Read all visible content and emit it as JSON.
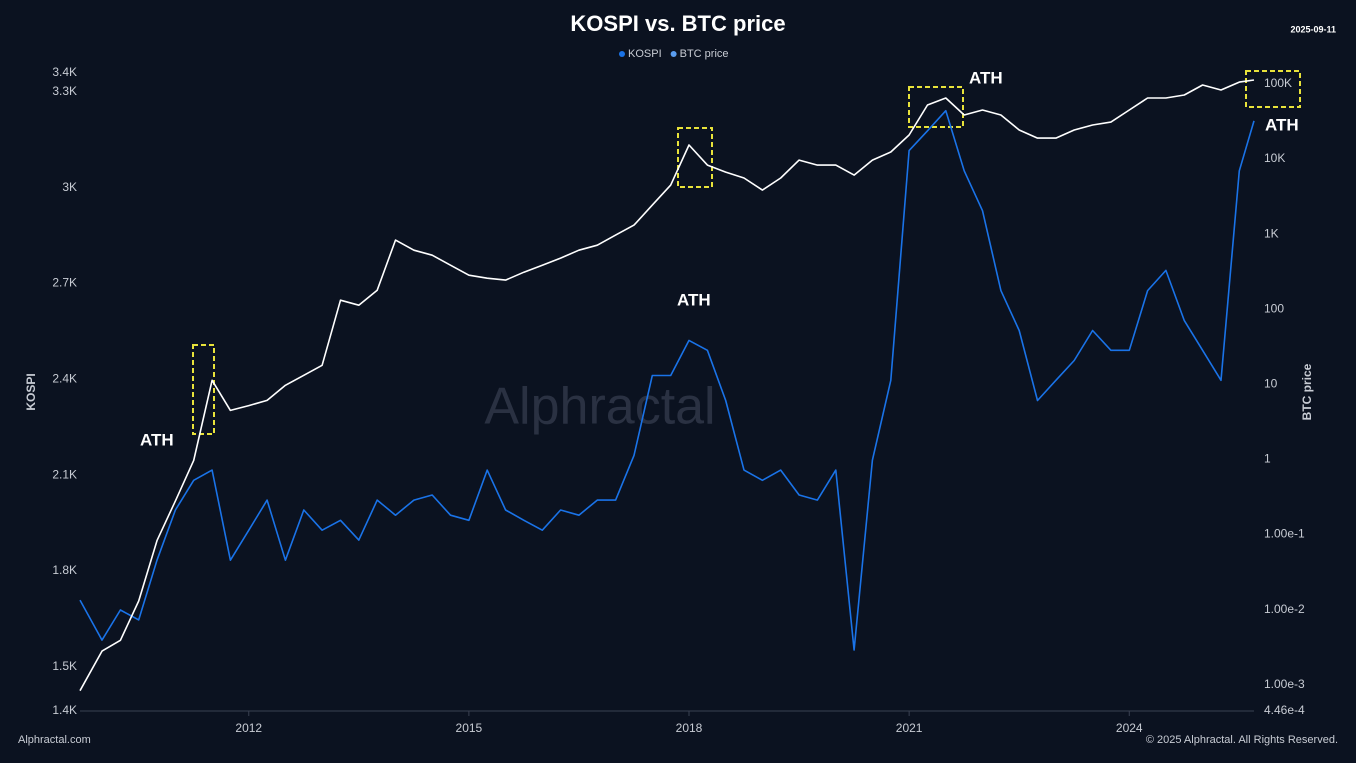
{
  "chart_data": {
    "type": "line",
    "title": "KOSPI vs. BTC price",
    "date": "2025-09-11",
    "x_label": null,
    "y_label": "KOSPI",
    "y2_label": "BTC price",
    "y2_log": true,
    "grid": false,
    "legend": "top",
    "x": [
      2009.7,
      2010,
      2010.25,
      2010.5,
      2010.75,
      2011,
      2011.25,
      2011.5,
      2011.75,
      2012,
      2012.25,
      2012.5,
      2012.75,
      2013,
      2013.25,
      2013.5,
      2013.75,
      2014,
      2014.25,
      2014.5,
      2014.75,
      2015,
      2015.25,
      2015.5,
      2015.75,
      2016,
      2016.25,
      2016.5,
      2016.75,
      2017,
      2017.25,
      2017.5,
      2017.75,
      2018,
      2018.25,
      2018.5,
      2018.75,
      2019,
      2019.25,
      2019.5,
      2019.75,
      2020,
      2020.25,
      2020.5,
      2020.75,
      2021,
      2021.25,
      2021.5,
      2021.75,
      2022,
      2022.25,
      2022.5,
      2022.75,
      2023,
      2023.25,
      2023.5,
      2023.75,
      2024,
      2024.25,
      2024.5,
      2024.75,
      2025,
      2025.25,
      2025.5,
      2025.7
    ],
    "series": [
      {
        "name": "KOSPI",
        "color": "#1a73e8",
        "values": [
          1709,
          1584,
          1678,
          1647,
          1834,
          1991,
          2084,
          2116,
          1834,
          1928,
          2022,
          1834,
          1991,
          1928,
          1959,
          1897,
          2022,
          1975,
          2022,
          2038,
          1975,
          1959,
          2116,
          1991,
          1959,
          1928,
          1991,
          1975,
          2022,
          2022,
          2162,
          2412,
          2412,
          2522,
          2491,
          2334,
          2116,
          2084,
          2116,
          2038,
          2022,
          2116,
          1553,
          2147,
          2397,
          3116,
          3178,
          3241,
          3053,
          2928,
          2678,
          2553,
          2334,
          2397,
          2459,
          2553,
          2491,
          2491,
          2678,
          2741,
          2584,
          2491,
          2397,
          3053,
          3209
        ]
      },
      {
        "name": "BTC price",
        "color": "#ffffff",
        "axis": "y2",
        "values": [
          0.00083,
          0.0028,
          0.0039,
          0.013,
          0.083,
          0.28,
          0.97,
          11.3,
          4.5,
          5.2,
          6.1,
          9.7,
          13.2,
          17.9,
          132,
          113,
          179,
          832,
          612,
          525,
          386,
          284,
          259,
          244,
          311,
          386,
          479,
          612,
          713,
          970,
          1318,
          2438,
          4500,
          15400,
          8300,
          6700,
          5600,
          3860,
          5600,
          9700,
          8300,
          8300,
          6120,
          9700,
          12400,
          20900,
          52500,
          65000,
          38600,
          45000,
          38600,
          24400,
          19000,
          19000,
          24400,
          28400,
          31100,
          45000,
          65000,
          65000,
          71300,
          97000,
          83200,
          106000,
          113000
        ]
      }
    ],
    "xlim": [
      2009.7,
      2025.7
    ],
    "xticks": [
      2012,
      2015,
      2018,
      2021,
      2024
    ],
    "ylim": [
      1362,
      3359
    ],
    "yticks": [
      {
        "value": 1362,
        "label": "1.4K"
      },
      {
        "value": 1500,
        "label": "1.5K"
      },
      {
        "value": 1800,
        "label": "1.8K"
      },
      {
        "value": 2100,
        "label": "2.1K"
      },
      {
        "value": 2400,
        "label": "2.4K"
      },
      {
        "value": 2700,
        "label": "2.7K"
      },
      {
        "value": 3000,
        "label": "3K"
      },
      {
        "value": 3300,
        "label": "3.3K"
      },
      {
        "value": 3359,
        "label": "3.4K"
      }
    ],
    "y2lim": [
      0.000446,
      140000
    ],
    "y2ticks": [
      {
        "value": 100000,
        "label": "100K"
      },
      {
        "value": 10000,
        "label": "10K"
      },
      {
        "value": 1000,
        "label": "1K"
      },
      100,
      10,
      1,
      {
        "value": 0.1,
        "label": "1.00e-1"
      },
      {
        "value": 0.01,
        "label": "1.00e-2"
      },
      {
        "value": 0.001,
        "label": "1.00e-3"
      },
      {
        "value": 0.000446,
        "label": "4.46e-4"
      }
    ],
    "annotations": [
      "ATH",
      "ATH",
      "ATH",
      "ATH"
    ],
    "watermark": "Alphractal",
    "footer_left": "Alphractal.com",
    "footer_right": "© 2025 Alphractal. All Rights Reserved."
  }
}
